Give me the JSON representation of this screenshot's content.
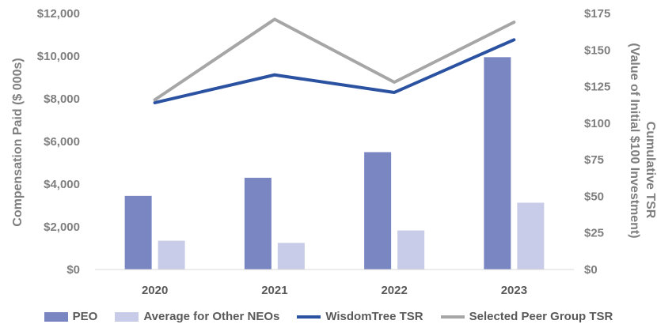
{
  "chart_data": {
    "type": "bar+line",
    "categories": [
      "2020",
      "2021",
      "2022",
      "2023"
    ],
    "y_left": {
      "label": "Compensation Paid ($ 000s)",
      "ylim": [
        0,
        12000
      ],
      "ticks": [
        0,
        2000,
        4000,
        6000,
        8000,
        10000,
        12000
      ],
      "tick_labels": [
        "$0",
        "$2,000",
        "$4,000",
        "$6,000",
        "$8,000",
        "$10,000",
        "$12,000"
      ]
    },
    "y_right": {
      "label_line1": "Cumulative TSR",
      "label_line2": "(Value of Initial $100 Investment)",
      "ylim": [
        0,
        175
      ],
      "ticks": [
        0,
        25,
        50,
        75,
        100,
        125,
        150,
        175
      ],
      "tick_labels": [
        "$0",
        "$25",
        "$50",
        "$75",
        "$100",
        "$125",
        "$150",
        "$175"
      ]
    },
    "bar_series": [
      {
        "name": "PEO",
        "color": "#7a86c2",
        "values": [
          3450,
          4300,
          5500,
          9950
        ]
      },
      {
        "name": "Average for Other NEOs",
        "color": "#c9cce8",
        "values": [
          1350,
          1250,
          1830,
          3130
        ]
      }
    ],
    "line_series": [
      {
        "name": "WisdomTree TSR",
        "color": "#2b52a1",
        "values": [
          114,
          133,
          121,
          157
        ]
      },
      {
        "name": "Selected Peer Group TSR",
        "color": "#a6a6a6",
        "values": [
          116,
          171,
          128,
          169
        ]
      }
    ],
    "grid": false,
    "legend_position": "bottom"
  }
}
